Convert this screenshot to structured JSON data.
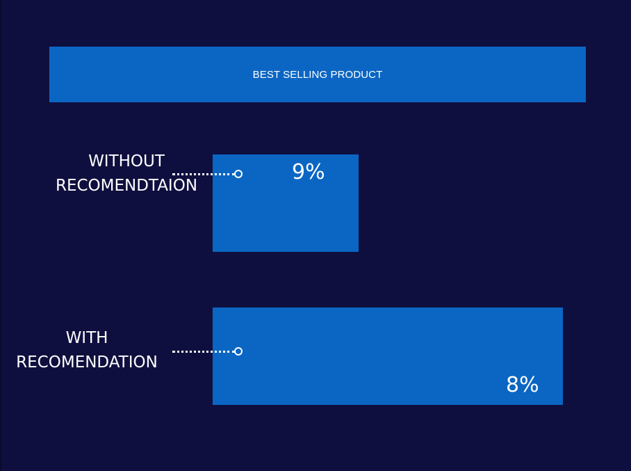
{
  "chart_data": {
    "type": "bar",
    "title": "BEST SELLING PRODUCT",
    "categories": [
      "WITHOUT RECOMENDTAION",
      "WITH RECOMENDATION"
    ],
    "category_lines": [
      [
        "WITHOUT",
        "RECOMENDTAION"
      ],
      [
        "WITH",
        "RECOMENDATION"
      ]
    ],
    "values": [
      9,
      8
    ],
    "value_labels": [
      "9%",
      "8%"
    ],
    "bar_color": "#0b66c3",
    "background_color": "#0f0f3f",
    "orientation": "horizontal"
  }
}
